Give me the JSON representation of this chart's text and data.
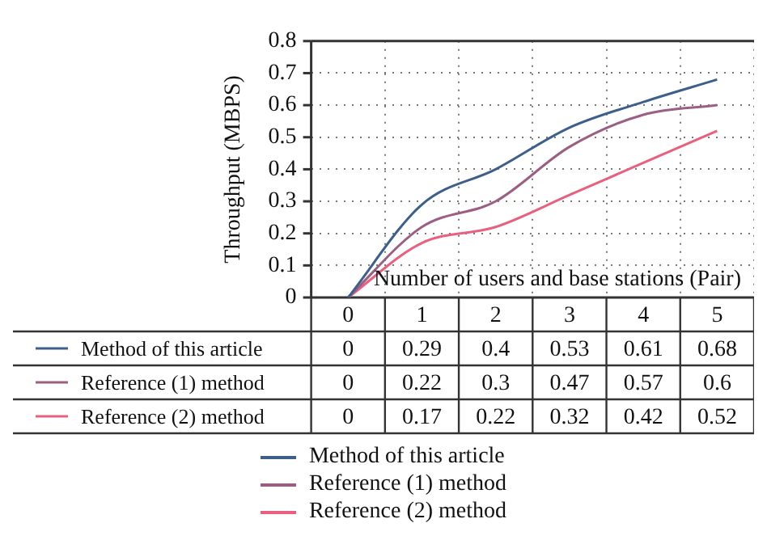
{
  "chart_data": {
    "type": "line",
    "ylabel": "Throughput (MBPS)",
    "xlabel": "Number of users and base stations (Pair)",
    "categories": [
      "0",
      "1",
      "2",
      "3",
      "4",
      "5"
    ],
    "series": [
      {
        "name": "Method of this article",
        "color": "#3d5f8c",
        "values": [
          0,
          0.29,
          0.4,
          0.53,
          0.61,
          0.68
        ]
      },
      {
        "name": "Reference (1) method",
        "color": "#9c5f84",
        "values": [
          0,
          0.22,
          0.3,
          0.47,
          0.57,
          0.6
        ]
      },
      {
        "name": "Reference (2) method",
        "color": "#e8607e",
        "values": [
          0,
          0.17,
          0.22,
          0.32,
          0.42,
          0.52
        ]
      }
    ],
    "ylim": [
      0,
      0.8
    ],
    "yticks": [
      0,
      0.1,
      0.2,
      0.3,
      0.4,
      0.5,
      0.6,
      0.7,
      0.8
    ],
    "grid": true,
    "data_labels": true,
    "legend": "bottom",
    "marker": "none",
    "line_style": "solid"
  }
}
